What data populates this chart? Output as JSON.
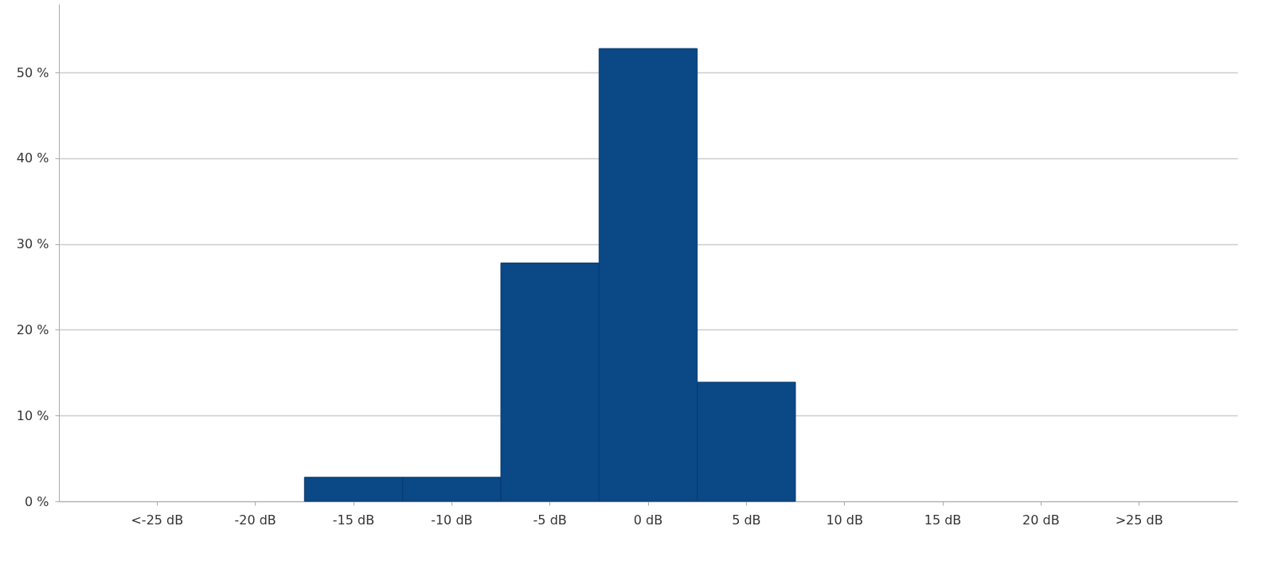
{
  "chart_data": {
    "type": "bar",
    "categories": [
      "<-25 dB",
      "-20 dB",
      "-15 dB",
      "-10 dB",
      "-5 dB",
      "0 dB",
      "5 dB",
      "10 dB",
      "15 dB",
      "20 dB",
      ">25 dB"
    ],
    "values": [
      null,
      null,
      2.8,
      2.8,
      27.8,
      52.8,
      13.9,
      null,
      null,
      null,
      null
    ],
    "color": "#0a4886",
    "ylim": [
      0,
      58
    ],
    "yticks": [
      {
        "value": 0,
        "label": "0 %"
      },
      {
        "value": 10,
        "label": "10 %"
      },
      {
        "value": 20,
        "label": "20 %"
      },
      {
        "value": 30,
        "label": "30 %"
      },
      {
        "value": 40,
        "label": "40 %"
      },
      {
        "value": 50,
        "label": "50 %"
      }
    ],
    "grid": "y"
  }
}
